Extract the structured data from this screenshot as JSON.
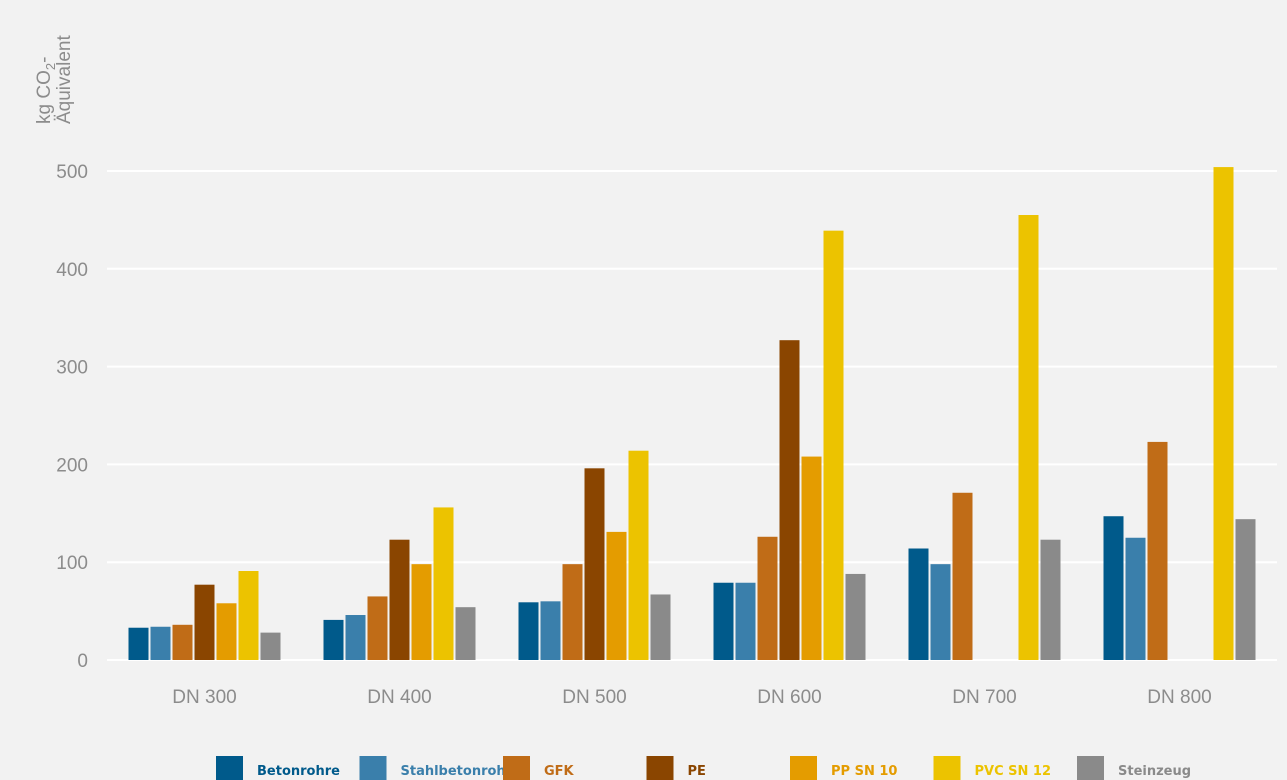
{
  "chart_data": {
    "type": "bar",
    "ylabel": "kg CO",
    "ylabel_sub": "2",
    "ylabel_suffix": "-",
    "ylabel_line2": "Äquivalent",
    "ylim": [
      0,
      500
    ],
    "yticks": [
      "0",
      "100",
      "200",
      "300",
      "400",
      "500"
    ],
    "grid": true,
    "legend_position": "bottom",
    "categories": [
      "DN 300",
      "DN 400",
      "DN 500",
      "DN 600",
      "DN 700",
      "DN 800"
    ],
    "series": [
      {
        "name": "Betonrohre",
        "color": "#005a8b",
        "values": [
          33,
          41,
          59,
          79,
          114,
          147
        ]
      },
      {
        "name": "Stahlbetonrohre",
        "color": "#3a7fab",
        "values": [
          34,
          46,
          60,
          79,
          98,
          125
        ]
      },
      {
        "name": "GFK",
        "color": "#c06c17",
        "values": [
          36,
          65,
          98,
          126,
          171,
          223
        ]
      },
      {
        "name": "PE",
        "color": "#8a4500",
        "values": [
          77,
          123,
          196,
          327,
          null,
          null
        ]
      },
      {
        "name": "PP SN 10",
        "color": "#e49c00",
        "values": [
          58,
          98,
          131,
          208,
          null,
          null
        ]
      },
      {
        "name": "PVC SN 12",
        "color": "#ecc300",
        "values": [
          91,
          156,
          214,
          439,
          455,
          504
        ]
      },
      {
        "name": "Steinzeug",
        "color": "#8a8a8a",
        "values": [
          28,
          54,
          67,
          88,
          123,
          144
        ]
      }
    ]
  }
}
